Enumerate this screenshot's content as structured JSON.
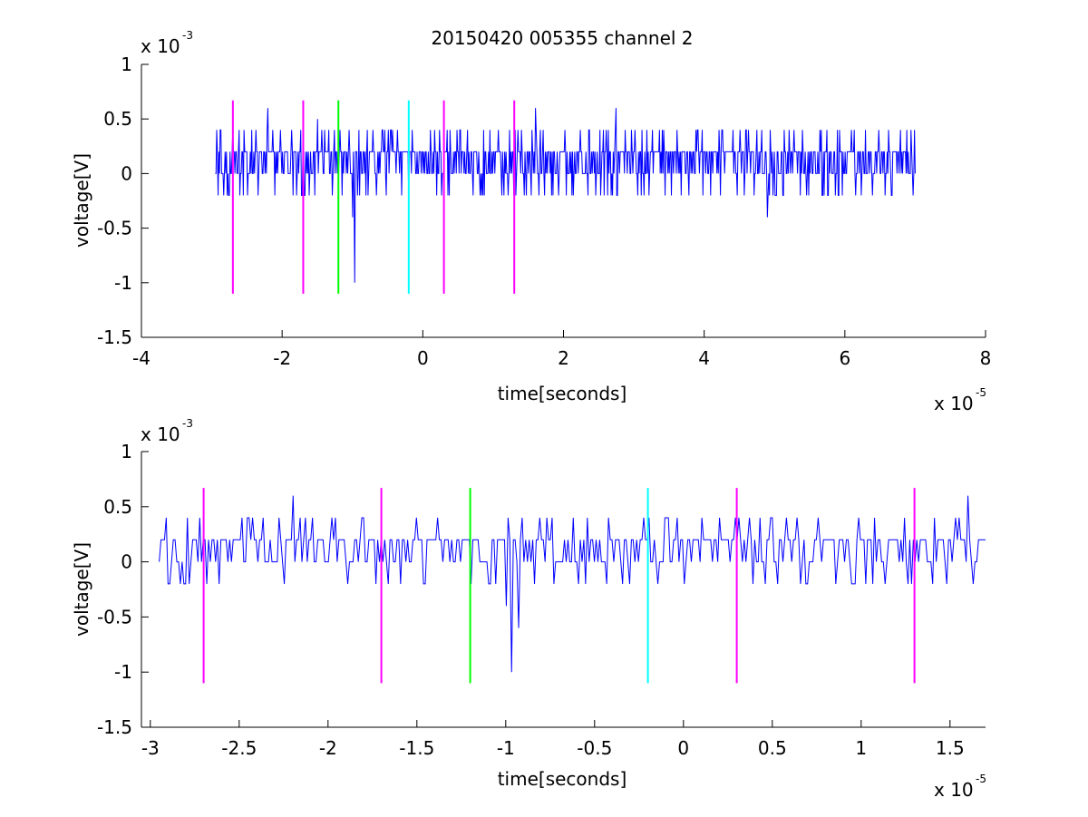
{
  "figure": {
    "title": "20150420 005355 channel 2"
  },
  "colors": {
    "signal": "#0000ff",
    "magenta": "#ff00ff",
    "green": "#00ff00",
    "cyan": "#00ffff",
    "axes": "#000000",
    "background": "#ffffff"
  },
  "chart_data": [
    {
      "type": "line",
      "title": "20150420 005355 channel 2",
      "xlabel": "time[seconds]",
      "ylabel": "voltage[V]",
      "x_exponent_label": "x 10",
      "x_exponent": "-5",
      "y_exponent_label": "x 10",
      "y_exponent": "-3",
      "xlim": [
        -4,
        8
      ],
      "ylim": [
        -1.5,
        1
      ],
      "x_ticks": [
        -4,
        -2,
        0,
        2,
        4,
        6,
        8
      ],
      "x_tick_labels": [
        "-4",
        "-2",
        "0",
        "2",
        "4",
        "6",
        "8"
      ],
      "y_ticks": [
        -1.5,
        -1,
        -0.5,
        0,
        0.5,
        1
      ],
      "y_tick_labels": [
        "-1.5",
        "-1",
        "-0.5",
        "0",
        "0.5",
        "1"
      ],
      "grid": false,
      "box": "open",
      "signal": {
        "name": "",
        "x_range": [
          -2.95,
          7.0
        ],
        "baseline": 0.1,
        "noise_levels": [
          0,
          0.2
        ],
        "notable_points": [
          {
            "x": -2.7,
            "y": 0.4
          },
          {
            "x": -2.2,
            "y": 0.6
          },
          {
            "x": -1.5,
            "y": 0.5
          },
          {
            "x": -1.15,
            "y": -0.2
          },
          {
            "x": -1.0,
            "y": -0.4
          },
          {
            "x": -0.97,
            "y": -1.0
          },
          {
            "x": -0.9,
            "y": -0.2
          },
          {
            "x": 1.6,
            "y": 0.6
          },
          {
            "x": 2.75,
            "y": 0.6
          },
          {
            "x": 4.9,
            "y": -0.4
          },
          {
            "x": 7.0,
            "y": 0.0
          }
        ]
      },
      "markers": [
        {
          "x": -2.7,
          "color": "magenta"
        },
        {
          "x": -1.7,
          "color": "magenta"
        },
        {
          "x": -1.2,
          "color": "green"
        },
        {
          "x": -0.2,
          "color": "cyan"
        },
        {
          "x": 0.3,
          "color": "magenta"
        },
        {
          "x": 1.3,
          "color": "magenta"
        }
      ],
      "marker_y_range": [
        -1.1,
        0.67
      ]
    },
    {
      "type": "line",
      "title": "",
      "xlabel": "time[seconds]",
      "ylabel": "voltage[V]",
      "x_exponent_label": "x 10",
      "x_exponent": "-5",
      "y_exponent_label": "x 10",
      "y_exponent": "-3",
      "xlim": [
        -3.05,
        1.7
      ],
      "ylim": [
        -1.5,
        1
      ],
      "x_ticks": [
        -3,
        -2.5,
        -2,
        -1.5,
        -1,
        -0.5,
        0,
        0.5,
        1,
        1.5
      ],
      "x_tick_labels": [
        "-3",
        "-2.5",
        "-2",
        "-1.5",
        "-1",
        "-0.5",
        "0",
        "0.5",
        "1",
        "1.5"
      ],
      "y_ticks": [
        -1.5,
        -1,
        -0.5,
        0,
        0.5,
        1
      ],
      "y_tick_labels": [
        "-1.5",
        "-1",
        "-0.5",
        "0",
        "0.5",
        "1"
      ],
      "grid": false,
      "box": "open",
      "signal": {
        "name": "",
        "x_range": [
          -2.95,
          1.7
        ],
        "baseline": 0.1,
        "noise_levels": [
          0,
          0.2
        ],
        "notable_points": [
          {
            "x": -2.9,
            "y": -0.2
          },
          {
            "x": -2.2,
            "y": 0.6
          },
          {
            "x": -1.5,
            "y": 0.4
          },
          {
            "x": -1.1,
            "y": -0.2
          },
          {
            "x": -1.0,
            "y": -0.4
          },
          {
            "x": -0.97,
            "y": -1.0
          },
          {
            "x": -0.93,
            "y": -0.6
          },
          {
            "x": -0.9,
            "y": 0.0
          },
          {
            "x": 1.6,
            "y": 0.6
          }
        ]
      },
      "markers": [
        {
          "x": -2.7,
          "color": "magenta"
        },
        {
          "x": -1.7,
          "color": "magenta"
        },
        {
          "x": -1.2,
          "color": "green"
        },
        {
          "x": -0.2,
          "color": "cyan"
        },
        {
          "x": 0.3,
          "color": "magenta"
        },
        {
          "x": 1.3,
          "color": "magenta"
        }
      ],
      "marker_y_range": [
        -1.1,
        0.67
      ]
    }
  ]
}
